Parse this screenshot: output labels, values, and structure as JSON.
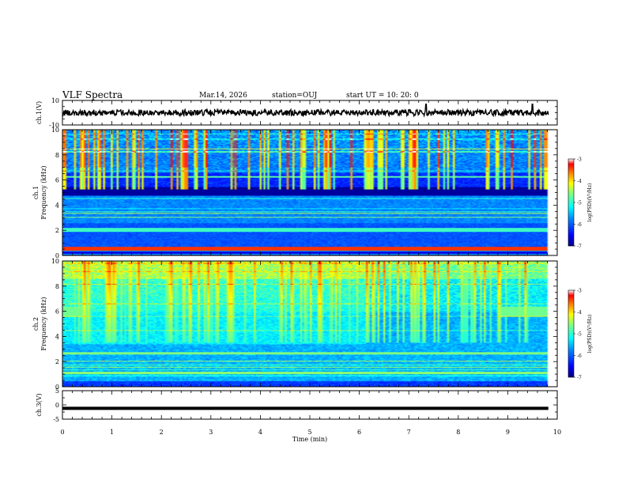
{
  "header": {
    "title": "VLF Spectra",
    "date": "Mar.14, 2026",
    "station": "station=OUJ",
    "start": "start  UT =   10: 20: 0"
  },
  "chart_data": {
    "type": "heatmap",
    "xlabel": "Time  (min)",
    "xlim": [
      0,
      10
    ],
    "xticks": [
      "0",
      "1",
      "2",
      "3",
      "4",
      "5",
      "6",
      "7",
      "8",
      "9",
      "10"
    ],
    "panels": [
      {
        "id": "ch1-waveform",
        "type": "line",
        "ylabel": "ch.1(V)",
        "ylim": [
          -10,
          10
        ],
        "yticks": [
          "10",
          "-10"
        ],
        "baseline": 0,
        "spike_times_min": [
          7.35,
          9.5
        ],
        "data_end_min": 9.82
      },
      {
        "id": "ch1-spectrogram",
        "type": "heatmap",
        "ylabel_line1": "ch.1",
        "ylabel_line2": "Frequency  (kHz)",
        "ylim": [
          0,
          10
        ],
        "yticks": [
          "0",
          "2",
          "4",
          "6",
          "8",
          "10"
        ],
        "data_end_min": 9.82,
        "colorbar": {
          "label": "log(PSD)(V²/Hz)",
          "range": [
            -7,
            -3
          ],
          "ticks": [
            "-3",
            "-4",
            "-5",
            "-6",
            "-7"
          ]
        }
      },
      {
        "id": "ch2-spectrogram",
        "type": "heatmap",
        "ylabel_line1": "ch.2",
        "ylabel_line2": "Frequency  (kHz)",
        "ylim": [
          0,
          10
        ],
        "yticks": [
          "0",
          "2",
          "4",
          "6",
          "8",
          "10"
        ],
        "data_end_min": 9.82,
        "colorbar": {
          "label": "log(PSD)(V²/Hz)",
          "range": [
            -7,
            -3
          ],
          "ticks": [
            "-3",
            "-4",
            "-5",
            "-6",
            "-7"
          ]
        }
      },
      {
        "id": "ch3-waveform",
        "type": "line",
        "ylabel": "ch.3(V)",
        "ylim": [
          -5,
          5
        ],
        "yticks": [
          "5",
          "0",
          "-5"
        ],
        "baseline": -1.2,
        "data_end_min": 9.82
      }
    ]
  },
  "colors": {
    "colormap": [
      "#00007f",
      "#0000ff",
      "#007fff",
      "#00ffff",
      "#7fff7f",
      "#ffff00",
      "#ff7f00",
      "#ff0000",
      "#ffffff"
    ],
    "trace": "#000000"
  }
}
